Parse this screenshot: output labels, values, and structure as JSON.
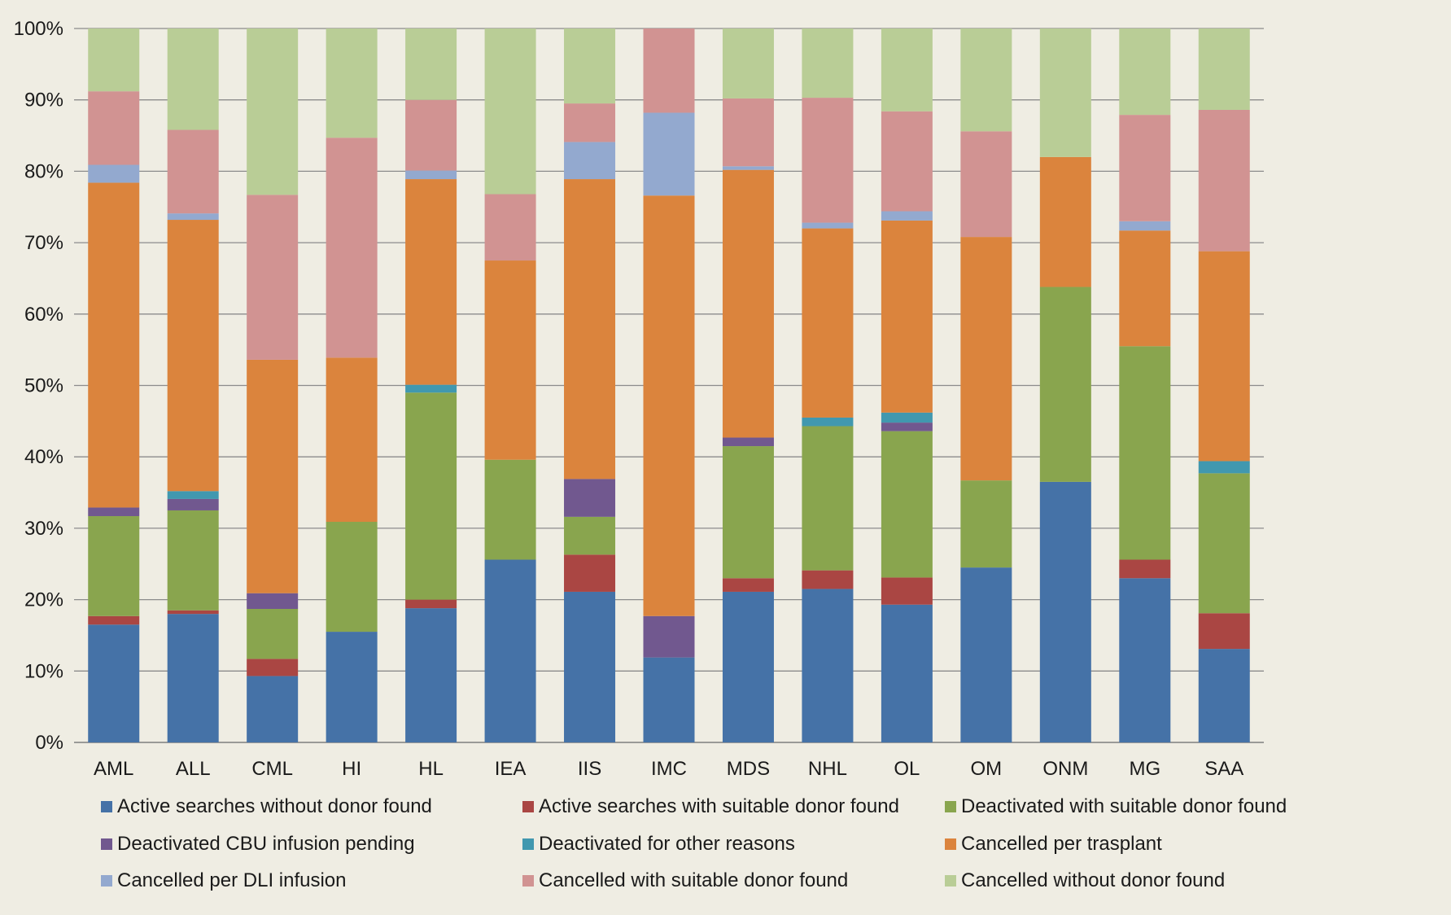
{
  "chart_data": {
    "type": "bar",
    "stacked": true,
    "percent_stacked": true,
    "categories": [
      "AML",
      "ALL",
      "CML",
      "HI",
      "HL",
      "IEA",
      "IIS",
      "IMC",
      "MDS",
      "NHL",
      "OL",
      "OM",
      "ONM",
      "MG",
      "SAA"
    ],
    "y_ticks": [
      "0%",
      "10%",
      "20%",
      "30%",
      "40%",
      "50%",
      "60%",
      "70%",
      "80%",
      "90%",
      "100%"
    ],
    "ylim": [
      0,
      100
    ],
    "grid": true,
    "legend_position": "bottom",
    "series": [
      {
        "name": "Active searches without donor found",
        "color": "#4572a7",
        "values": [
          16.5,
          18.0,
          9.3,
          15.5,
          18.8,
          25.6,
          21.1,
          11.9,
          21.1,
          21.5,
          19.3,
          24.5,
          36.5,
          23.0,
          13.1
        ]
      },
      {
        "name": "Active searches with suitable donor found",
        "color": "#aa4643",
        "values": [
          1.2,
          0.5,
          2.4,
          0,
          1.2,
          0,
          5.2,
          0,
          1.9,
          2.6,
          3.8,
          0,
          0,
          2.6,
          5.0
        ]
      },
      {
        "name": "Deactivated with suitable donor found",
        "color": "#89a54e",
        "values": [
          14.0,
          14.0,
          7.0,
          15.4,
          29.0,
          14.0,
          5.3,
          0,
          18.5,
          20.2,
          20.5,
          12.2,
          27.3,
          29.9,
          19.6
        ]
      },
      {
        "name": "Deactivated CBU infusion pending",
        "color": "#71588f",
        "values": [
          1.2,
          1.6,
          2.2,
          0,
          0,
          0,
          5.3,
          5.8,
          1.2,
          0,
          1.2,
          0,
          0,
          0,
          0
        ]
      },
      {
        "name": "Deactivated for other reasons",
        "color": "#4198af",
        "values": [
          0,
          1.1,
          0,
          0,
          1.1,
          0,
          0,
          0,
          0,
          1.2,
          1.4,
          0,
          0,
          0,
          1.7
        ]
      },
      {
        "name": "Cancelled per trasplant",
        "color": "#db843d",
        "values": [
          45.5,
          38.0,
          32.7,
          23.0,
          28.8,
          27.9,
          42.0,
          58.9,
          37.5,
          26.5,
          26.9,
          34.1,
          18.2,
          16.2,
          29.4
        ]
      },
      {
        "name": "Cancelled per DLI infusion",
        "color": "#93a9cf",
        "values": [
          2.5,
          0.9,
          0,
          0,
          1.2,
          0,
          5.2,
          11.6,
          0.5,
          0.8,
          1.3,
          0,
          0,
          1.3,
          0
        ]
      },
      {
        "name": "Cancelled with suitable donor found",
        "color": "#d19392",
        "values": [
          10.3,
          11.7,
          23.1,
          30.8,
          9.9,
          9.3,
          5.4,
          11.8,
          9.5,
          17.5,
          14.0,
          14.8,
          0,
          14.9,
          19.8
        ]
      },
      {
        "name": "Cancelled without donor found",
        "color": "#b9cd96",
        "values": [
          8.8,
          14.2,
          23.3,
          15.3,
          10.0,
          23.2,
          10.5,
          0,
          9.8,
          9.7,
          11.6,
          14.4,
          18.0,
          12.1,
          11.4
        ]
      }
    ]
  }
}
